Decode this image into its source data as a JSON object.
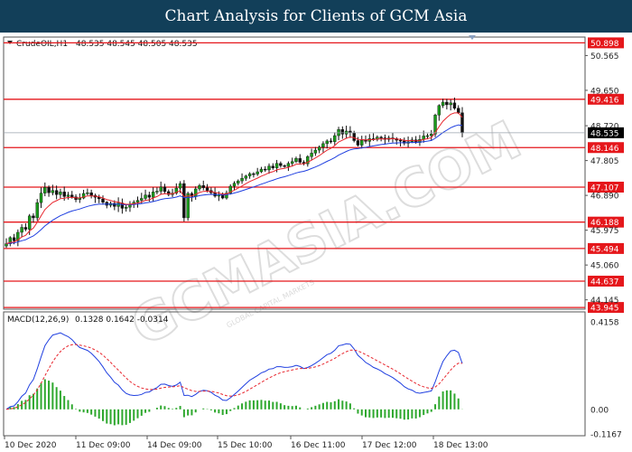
{
  "header": {
    "title": "Chart Analysis for Clients of GCM Asia"
  },
  "chart_data": [
    {
      "type": "candlestick",
      "symbol_label": "CrudeOIL,H1",
      "ohlc_readout": "48.535 48.545 48.505 48.535",
      "ylim": [
        43.9,
        51.05
      ],
      "y_ticks": [
        "50.565",
        "49.650",
        "48.720",
        "47.805",
        "46.890",
        "45.975",
        "45.060",
        "44.145"
      ],
      "current_price": "48.535",
      "levels": [
        "50.898",
        "49.416",
        "48.146",
        "47.107",
        "46.188",
        "45.494",
        "44.637",
        "43.945"
      ],
      "x_labels": [
        "10 Dec 2020",
        "11 Dec 09:00",
        "14 Dec 09:00",
        "15 Dec 10:00",
        "16 Dec 11:00",
        "17 Dec 12:00",
        "18 Dec 13:00"
      ],
      "series": [
        {
          "close": [
            45.62,
            45.78,
            45.7,
            45.92,
            46.05,
            46.0,
            46.35,
            46.3,
            46.7,
            46.95,
            47.1,
            46.96,
            47.02,
            46.91,
            46.98,
            46.86,
            46.9,
            46.85,
            46.78,
            46.82,
            46.94,
            46.96,
            46.89,
            46.84,
            46.8,
            46.71,
            46.63,
            46.68,
            46.6,
            46.69,
            46.55,
            46.58,
            46.66,
            46.71,
            46.76,
            46.81,
            46.9,
            46.84,
            46.98,
            47.0,
            47.11,
            46.99,
            46.91,
            46.95,
            47.08,
            47.2,
            46.3,
            46.94,
            46.86,
            47.06,
            47.15,
            47.09,
            47.02,
            46.96,
            46.87,
            46.91,
            46.82,
            46.95,
            47.13,
            47.21,
            47.27,
            47.34,
            47.4,
            47.46,
            47.45,
            47.51,
            47.58,
            47.56,
            47.66,
            47.61,
            47.73,
            47.67,
            47.65,
            47.73,
            47.78,
            47.86,
            47.76,
            47.72,
            47.91,
            48.0,
            48.08,
            48.16,
            48.25,
            48.32,
            48.3,
            48.46,
            48.62,
            48.5,
            48.58,
            48.54,
            48.33,
            48.21,
            48.34,
            48.31,
            48.38,
            48.36,
            48.42,
            48.4,
            48.36,
            48.4,
            48.38,
            48.34,
            48.32,
            48.26,
            48.3,
            48.35,
            48.28,
            48.36,
            48.45,
            48.46,
            48.5,
            49.0,
            49.25,
            49.34,
            49.27,
            49.32,
            49.18,
            49.06,
            48.535
          ]
        },
        {
          "name": "EMA",
          "role": "fast-ma",
          "color": "#e8262e"
        },
        {
          "name": "EMA",
          "role": "slow-ma",
          "color": "#1f3fe0"
        }
      ],
      "grid": false
    },
    {
      "type": "line",
      "indicator_label": "MACD(12,26,9)",
      "readout": "0.1328 0.1642 -0.0314",
      "y_ticks": [
        "0.4158",
        "0.00",
        "-0.1167"
      ],
      "ylim": [
        -0.1167,
        0.4158
      ],
      "series": [
        {
          "name": "MACD",
          "color": "#1f3fe0"
        },
        {
          "name": "Signal",
          "color": "#e8262e",
          "style": "dashed"
        },
        {
          "name": "Histogram",
          "color": "#2ea82e",
          "type": "bar"
        }
      ]
    }
  ],
  "watermark": {
    "text": "GCMASIA.COM",
    "subtext": "GLOBAL CAPITAL MARKETS"
  }
}
